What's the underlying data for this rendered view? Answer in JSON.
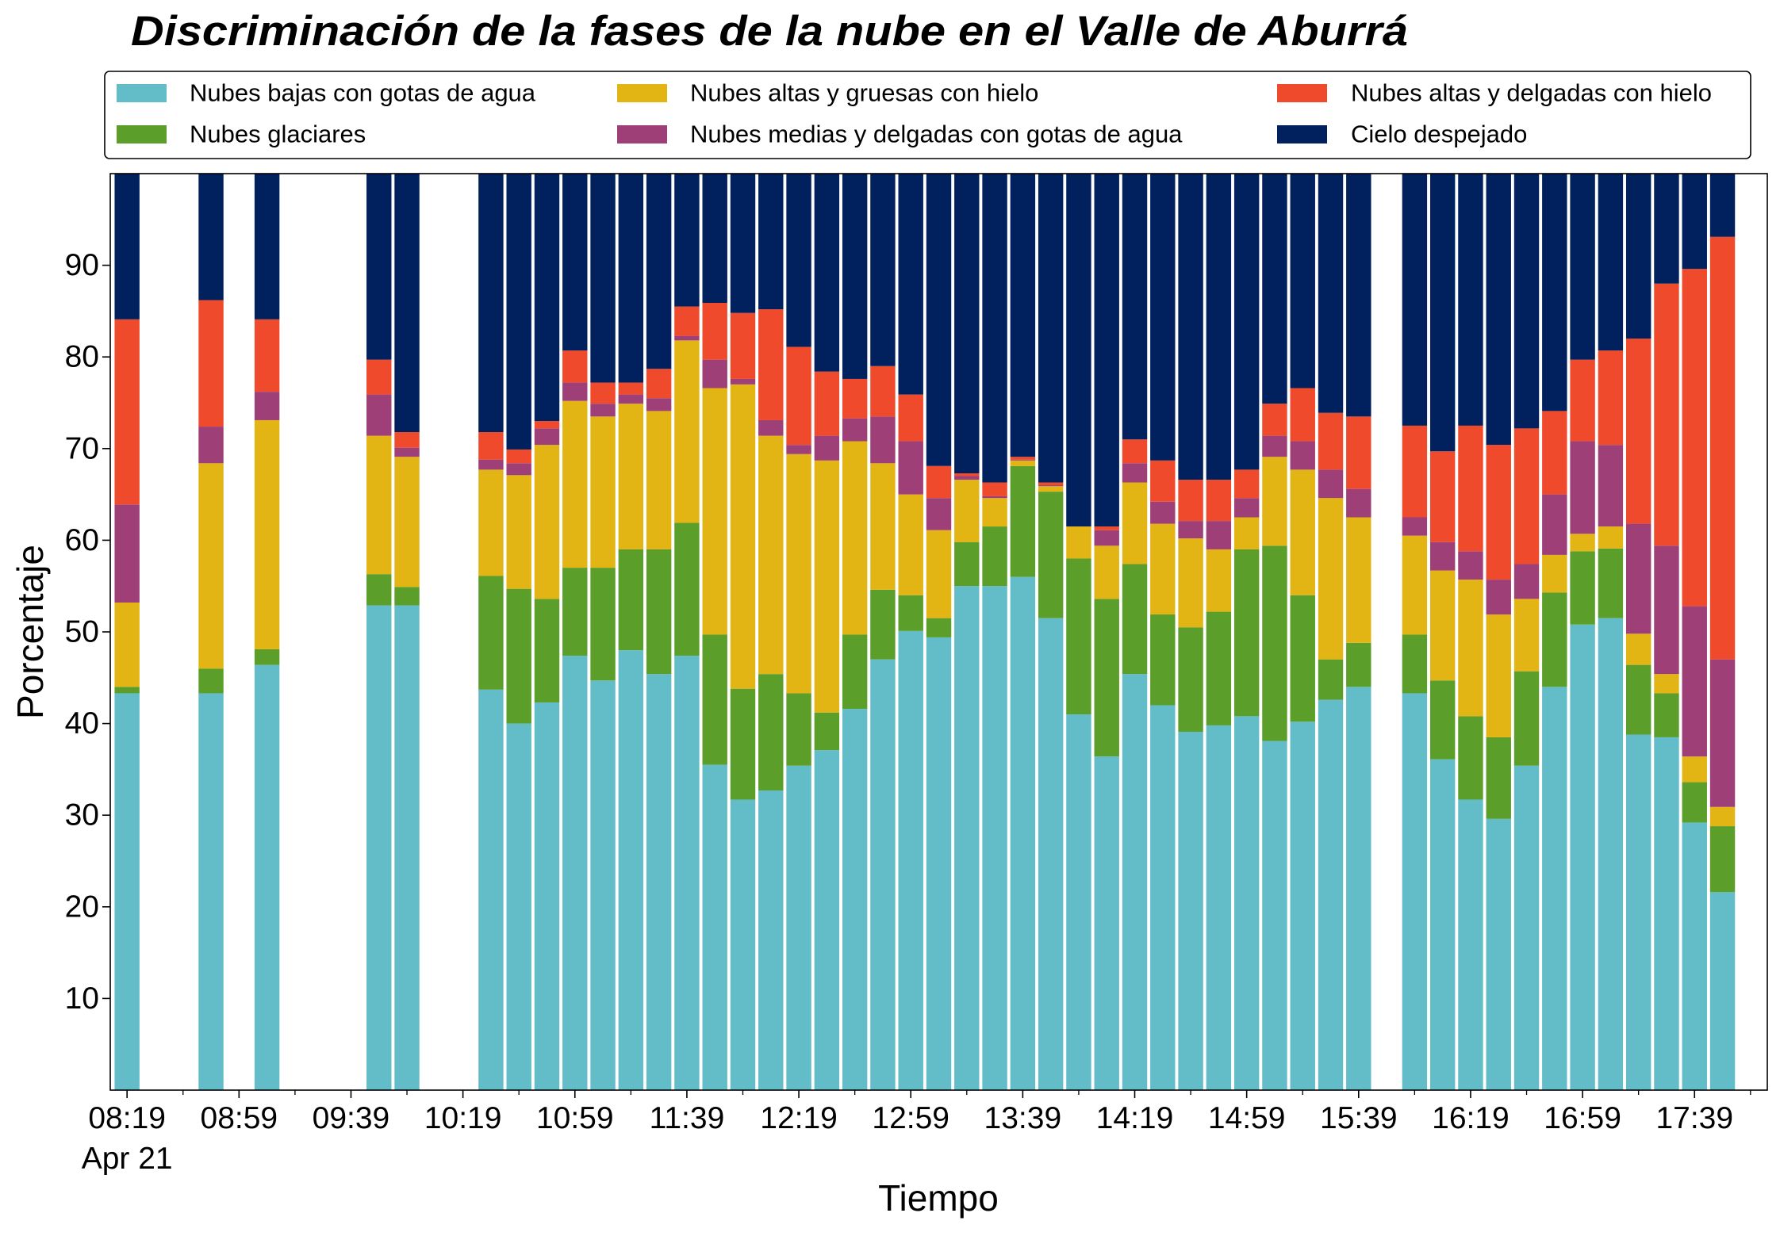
{
  "chart_data": {
    "type": "bar",
    "stacked": true,
    "title": "Discriminación de la fases de la nube en el Valle de Aburrá",
    "xlabel": "Tiempo",
    "ylabel": "Porcentaje",
    "xtick_date_label": "Apr 21",
    "xticks": [
      "08:19",
      "08:59",
      "09:39",
      "10:19",
      "10:59",
      "11:39",
      "12:19",
      "12:59",
      "13:39",
      "14:19",
      "14:59",
      "15:39",
      "16:19",
      "16:59",
      "17:39"
    ],
    "yticks": [
      10,
      20,
      30,
      40,
      50,
      60,
      70,
      80,
      90
    ],
    "xlim": [
      "08:13",
      "18:05"
    ],
    "ylim": [
      0,
      100
    ],
    "grid": false,
    "legend_position": "top",
    "x": [
      "08:19",
      "08:49",
      "09:09",
      "09:49",
      "09:59",
      "10:29",
      "10:39",
      "10:49",
      "10:59",
      "11:09",
      "11:19",
      "11:29",
      "11:39",
      "11:49",
      "11:59",
      "12:09",
      "12:19",
      "12:29",
      "12:39",
      "12:49",
      "12:59",
      "13:09",
      "13:19",
      "13:29",
      "13:39",
      "13:49",
      "13:59",
      "14:09",
      "14:19",
      "14:29",
      "14:39",
      "14:49",
      "14:59",
      "15:09",
      "15:19",
      "15:29",
      "15:39",
      "15:59",
      "16:09",
      "16:19",
      "16:29",
      "16:39",
      "16:49",
      "16:59",
      "17:09",
      "17:19",
      "17:29",
      "17:39",
      "17:49"
    ],
    "series": [
      {
        "name": "Nubes bajas con gotas de agua",
        "color": "#63bdc9",
        "values": [
          43.3,
          43.3,
          46.4,
          52.9,
          52.9,
          43.7,
          40.0,
          42.3,
          47.4,
          44.7,
          48.0,
          45.4,
          47.4,
          35.5,
          31.7,
          32.7,
          35.4,
          37.1,
          41.6,
          47.0,
          50.1,
          49.4,
          55.0,
          55.0,
          56.0,
          51.5,
          41.0,
          36.4,
          45.4,
          42.0,
          39.1,
          39.8,
          40.8,
          38.1,
          40.2,
          42.6,
          44.0,
          43.3,
          36.1,
          31.7,
          29.6,
          35.4,
          44.0,
          50.8,
          51.5,
          38.8,
          38.5,
          29.2,
          21.6
        ]
      },
      {
        "name": "Nubes glaciares",
        "color": "#5b9e2a",
        "values": [
          0.7,
          2.7,
          1.7,
          3.4,
          2.0,
          12.4,
          14.7,
          11.3,
          9.6,
          12.3,
          11.0,
          13.6,
          14.5,
          14.2,
          12.1,
          12.7,
          7.9,
          4.1,
          8.1,
          7.6,
          3.9,
          2.1,
          4.8,
          6.5,
          12.1,
          13.8,
          17.0,
          17.2,
          12.0,
          9.9,
          11.4,
          12.4,
          18.2,
          21.3,
          13.8,
          4.4,
          4.8,
          6.4,
          8.6,
          9.1,
          8.9,
          10.3,
          10.3,
          8.0,
          7.6,
          7.6,
          4.8,
          4.4,
          7.2
        ]
      },
      {
        "name": "Nubes altas y gruesas con hielo",
        "color": "#e3b514",
        "values": [
          9.2,
          22.4,
          25.0,
          15.1,
          14.2,
          11.6,
          12.4,
          16.8,
          18.2,
          16.5,
          15.9,
          15.1,
          19.9,
          26.9,
          33.2,
          26.0,
          26.1,
          27.5,
          21.1,
          13.8,
          11.0,
          9.6,
          6.8,
          3.1,
          0.6,
          0.6,
          3.5,
          5.8,
          8.9,
          9.9,
          9.7,
          6.8,
          3.5,
          9.7,
          13.7,
          17.6,
          13.7,
          10.8,
          12.0,
          14.9,
          13.4,
          7.9,
          4.1,
          1.9,
          2.4,
          3.4,
          2.1,
          2.8,
          2.1
        ]
      },
      {
        "name": "Nubes medias y delgadas con gotas de agua",
        "color": "#9e3f78",
        "values": [
          10.7,
          4.0,
          3.1,
          4.5,
          1.0,
          1.1,
          1.3,
          1.8,
          2.0,
          1.4,
          1.0,
          1.4,
          0.5,
          3.1,
          0.6,
          1.7,
          1.0,
          2.7,
          2.5,
          5.1,
          5.8,
          3.5,
          0.4,
          0.2,
          0.1,
          0.1,
          0.0,
          1.7,
          2.1,
          2.4,
          1.9,
          3.1,
          2.1,
          2.3,
          3.1,
          3.1,
          3.1,
          2.0,
          3.1,
          3.1,
          3.8,
          3.8,
          6.6,
          10.1,
          8.9,
          12.0,
          14.0,
          16.4,
          16.1
        ]
      },
      {
        "name": "Nubes altas y delgadas con hielo",
        "color": "#ef4a2b",
        "values": [
          20.2,
          13.8,
          7.9,
          3.8,
          1.7,
          3.0,
          1.5,
          0.8,
          3.5,
          2.3,
          1.3,
          3.2,
          3.2,
          6.2,
          7.2,
          12.1,
          10.7,
          7.0,
          4.3,
          5.5,
          5.1,
          3.5,
          0.3,
          1.5,
          0.3,
          0.3,
          0.0,
          0.4,
          2.6,
          4.5,
          4.5,
          4.5,
          3.1,
          3.5,
          5.8,
          6.2,
          7.9,
          10.0,
          9.9,
          13.7,
          14.7,
          14.8,
          9.1,
          8.9,
          10.3,
          20.2,
          28.6,
          36.8,
          46.1
        ]
      },
      {
        "name": "Cielo despejado",
        "color": "#01205e",
        "values": [
          15.9,
          13.8,
          15.9,
          20.3,
          28.2,
          28.2,
          30.1,
          27.0,
          19.3,
          22.8,
          22.8,
          21.3,
          14.5,
          14.1,
          15.2,
          14.8,
          18.9,
          21.6,
          22.4,
          21.0,
          24.1,
          31.9,
          32.7,
          33.7,
          30.9,
          33.7,
          38.5,
          38.5,
          29.0,
          31.3,
          33.4,
          33.4,
          32.3,
          25.1,
          23.4,
          26.1,
          26.5,
          27.5,
          30.3,
          27.5,
          29.6,
          27.8,
          25.9,
          20.3,
          19.3,
          18.0,
          12.0,
          10.4,
          6.9
        ]
      }
    ]
  }
}
